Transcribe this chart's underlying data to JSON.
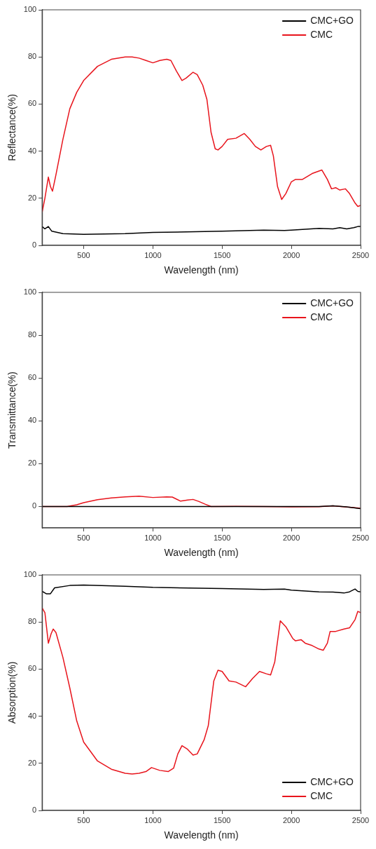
{
  "chart_data": [
    {
      "type": "line",
      "xlabel": "Wavelength (nm)",
      "ylabel": "Reflectance(%)",
      "xlim": [
        200,
        2500
      ],
      "xticks": [
        500,
        1000,
        1500,
        2000,
        2500
      ],
      "ylim": [
        0,
        100
      ],
      "yticks": [
        0,
        20,
        40,
        60,
        80,
        100
      ],
      "grid": false,
      "legend": "top right",
      "marker": "none",
      "line_style": "solid",
      "series": [
        {
          "name": "CMC+GO",
          "color": "#000000",
          "x": [
            200,
            220,
            245,
            270,
            350,
            500,
            800,
            1000,
            1500,
            1800,
            1950,
            2000,
            2200,
            2300,
            2350,
            2400,
            2450,
            2480,
            2500
          ],
          "values": [
            8,
            7,
            8,
            6,
            5,
            4.7,
            5,
            5.5,
            6,
            6.5,
            6.3,
            6.5,
            7.2,
            7,
            7.5,
            7,
            7.5,
            8,
            8
          ]
        },
        {
          "name": "CMC",
          "color": "#e8141c",
          "x": [
            200,
            220,
            245,
            260,
            275,
            300,
            350,
            400,
            450,
            500,
            600,
            700,
            800,
            850,
            900,
            950,
            1000,
            1050,
            1100,
            1130,
            1170,
            1210,
            1240,
            1290,
            1320,
            1360,
            1390,
            1420,
            1450,
            1470,
            1500,
            1540,
            1600,
            1660,
            1700,
            1740,
            1780,
            1820,
            1850,
            1870,
            1900,
            1930,
            1960,
            2000,
            2030,
            2080,
            2150,
            2220,
            2260,
            2290,
            2320,
            2350,
            2390,
            2420,
            2460,
            2480,
            2500
          ],
          "values": [
            14,
            20,
            29,
            25,
            23,
            30,
            45,
            58,
            65,
            70,
            76,
            79,
            80,
            80,
            79.5,
            78.5,
            77.5,
            78.5,
            79,
            78.5,
            74,
            70,
            71,
            73.5,
            72.5,
            68,
            62,
            48,
            41,
            40.5,
            42,
            45,
            45.5,
            47.5,
            45,
            42,
            40.5,
            42,
            42.5,
            38,
            25,
            19.5,
            22,
            27,
            28,
            28,
            30.5,
            32,
            28,
            24,
            24.5,
            23.5,
            24,
            22,
            18,
            16.5,
            17
          ]
        }
      ]
    },
    {
      "type": "line",
      "xlabel": "Wavelength (nm)",
      "ylabel": "Transmittance(%)",
      "xlim": [
        200,
        2500
      ],
      "xticks": [
        500,
        1000,
        1500,
        2000,
        2500
      ],
      "ylim": [
        -10,
        100
      ],
      "yticks": [
        0,
        20,
        40,
        60,
        80,
        100
      ],
      "grid": false,
      "legend": "top right",
      "marker": "none",
      "line_style": "solid",
      "series": [
        {
          "name": "CMC+GO",
          "color": "#000000",
          "x": [
            200,
            1400,
            1800,
            2200,
            2300,
            2400,
            2450,
            2500
          ],
          "values": [
            0,
            0,
            0,
            0,
            0.3,
            -0.2,
            -0.6,
            -1
          ]
        },
        {
          "name": "CMC",
          "color": "#e8141c",
          "x": [
            200,
            380,
            450,
            500,
            600,
            700,
            800,
            900,
            1000,
            1100,
            1140,
            1200,
            1250,
            1290,
            1330,
            1380,
            1420,
            1600,
            1800,
            2000,
            2200,
            2300,
            2400,
            2450,
            2500
          ],
          "values": [
            0,
            0,
            0.8,
            1.8,
            3.2,
            4,
            4.5,
            4.8,
            4.2,
            4.5,
            4.4,
            2.5,
            3,
            3.3,
            2.4,
            1,
            0,
            0.1,
            0,
            -0.2,
            -0.1,
            0.3,
            -0.3,
            -0.5,
            -0.8
          ]
        }
      ]
    },
    {
      "type": "line",
      "xlabel": "Wavelength (nm)",
      "ylabel": "Absorption(%)",
      "xlim": [
        200,
        2500
      ],
      "xticks": [
        500,
        1000,
        1500,
        2000,
        2500
      ],
      "ylim": [
        0,
        100
      ],
      "yticks": [
        0,
        20,
        40,
        60,
        80,
        100
      ],
      "grid": false,
      "legend": "bottom right",
      "marker": "none",
      "line_style": "solid",
      "series": [
        {
          "name": "CMC+GO",
          "color": "#000000",
          "x": [
            200,
            230,
            260,
            290,
            400,
            500,
            800,
            1000,
            1500,
            1800,
            1950,
            2000,
            2200,
            2300,
            2380,
            2420,
            2460,
            2480,
            2500
          ],
          "values": [
            93,
            92,
            92,
            94.5,
            95.5,
            95.7,
            95.2,
            94.7,
            94.2,
            93.8,
            94,
            93.5,
            92.8,
            92.7,
            92.3,
            92.8,
            94,
            93,
            92.8
          ]
        },
        {
          "name": "CMC",
          "color": "#e8141c",
          "x": [
            200,
            220,
            245,
            265,
            280,
            300,
            350,
            400,
            450,
            500,
            600,
            700,
            800,
            850,
            900,
            950,
            990,
            1050,
            1110,
            1150,
            1180,
            1210,
            1250,
            1290,
            1320,
            1370,
            1400,
            1440,
            1470,
            1500,
            1550,
            1600,
            1670,
            1720,
            1770,
            1820,
            1850,
            1880,
            1920,
            1960,
            2010,
            2030,
            2070,
            2100,
            2150,
            2200,
            2230,
            2260,
            2280,
            2320,
            2380,
            2420,
            2460,
            2480,
            2500
          ],
          "values": [
            86,
            84,
            71,
            75,
            77,
            75.5,
            65,
            52,
            38,
            29,
            21,
            17.5,
            15.8,
            15.5,
            15.8,
            16.5,
            18.2,
            17,
            16.5,
            18,
            24,
            27.5,
            26,
            23.5,
            24,
            30,
            36,
            55,
            59.5,
            59,
            55,
            54.5,
            52.5,
            56,
            59,
            58,
            57.5,
            63,
            80.5,
            78,
            73,
            72,
            72.5,
            71,
            70,
            68.5,
            68,
            71,
            76,
            76,
            77,
            77.5,
            81,
            84.5,
            84
          ]
        }
      ]
    }
  ]
}
